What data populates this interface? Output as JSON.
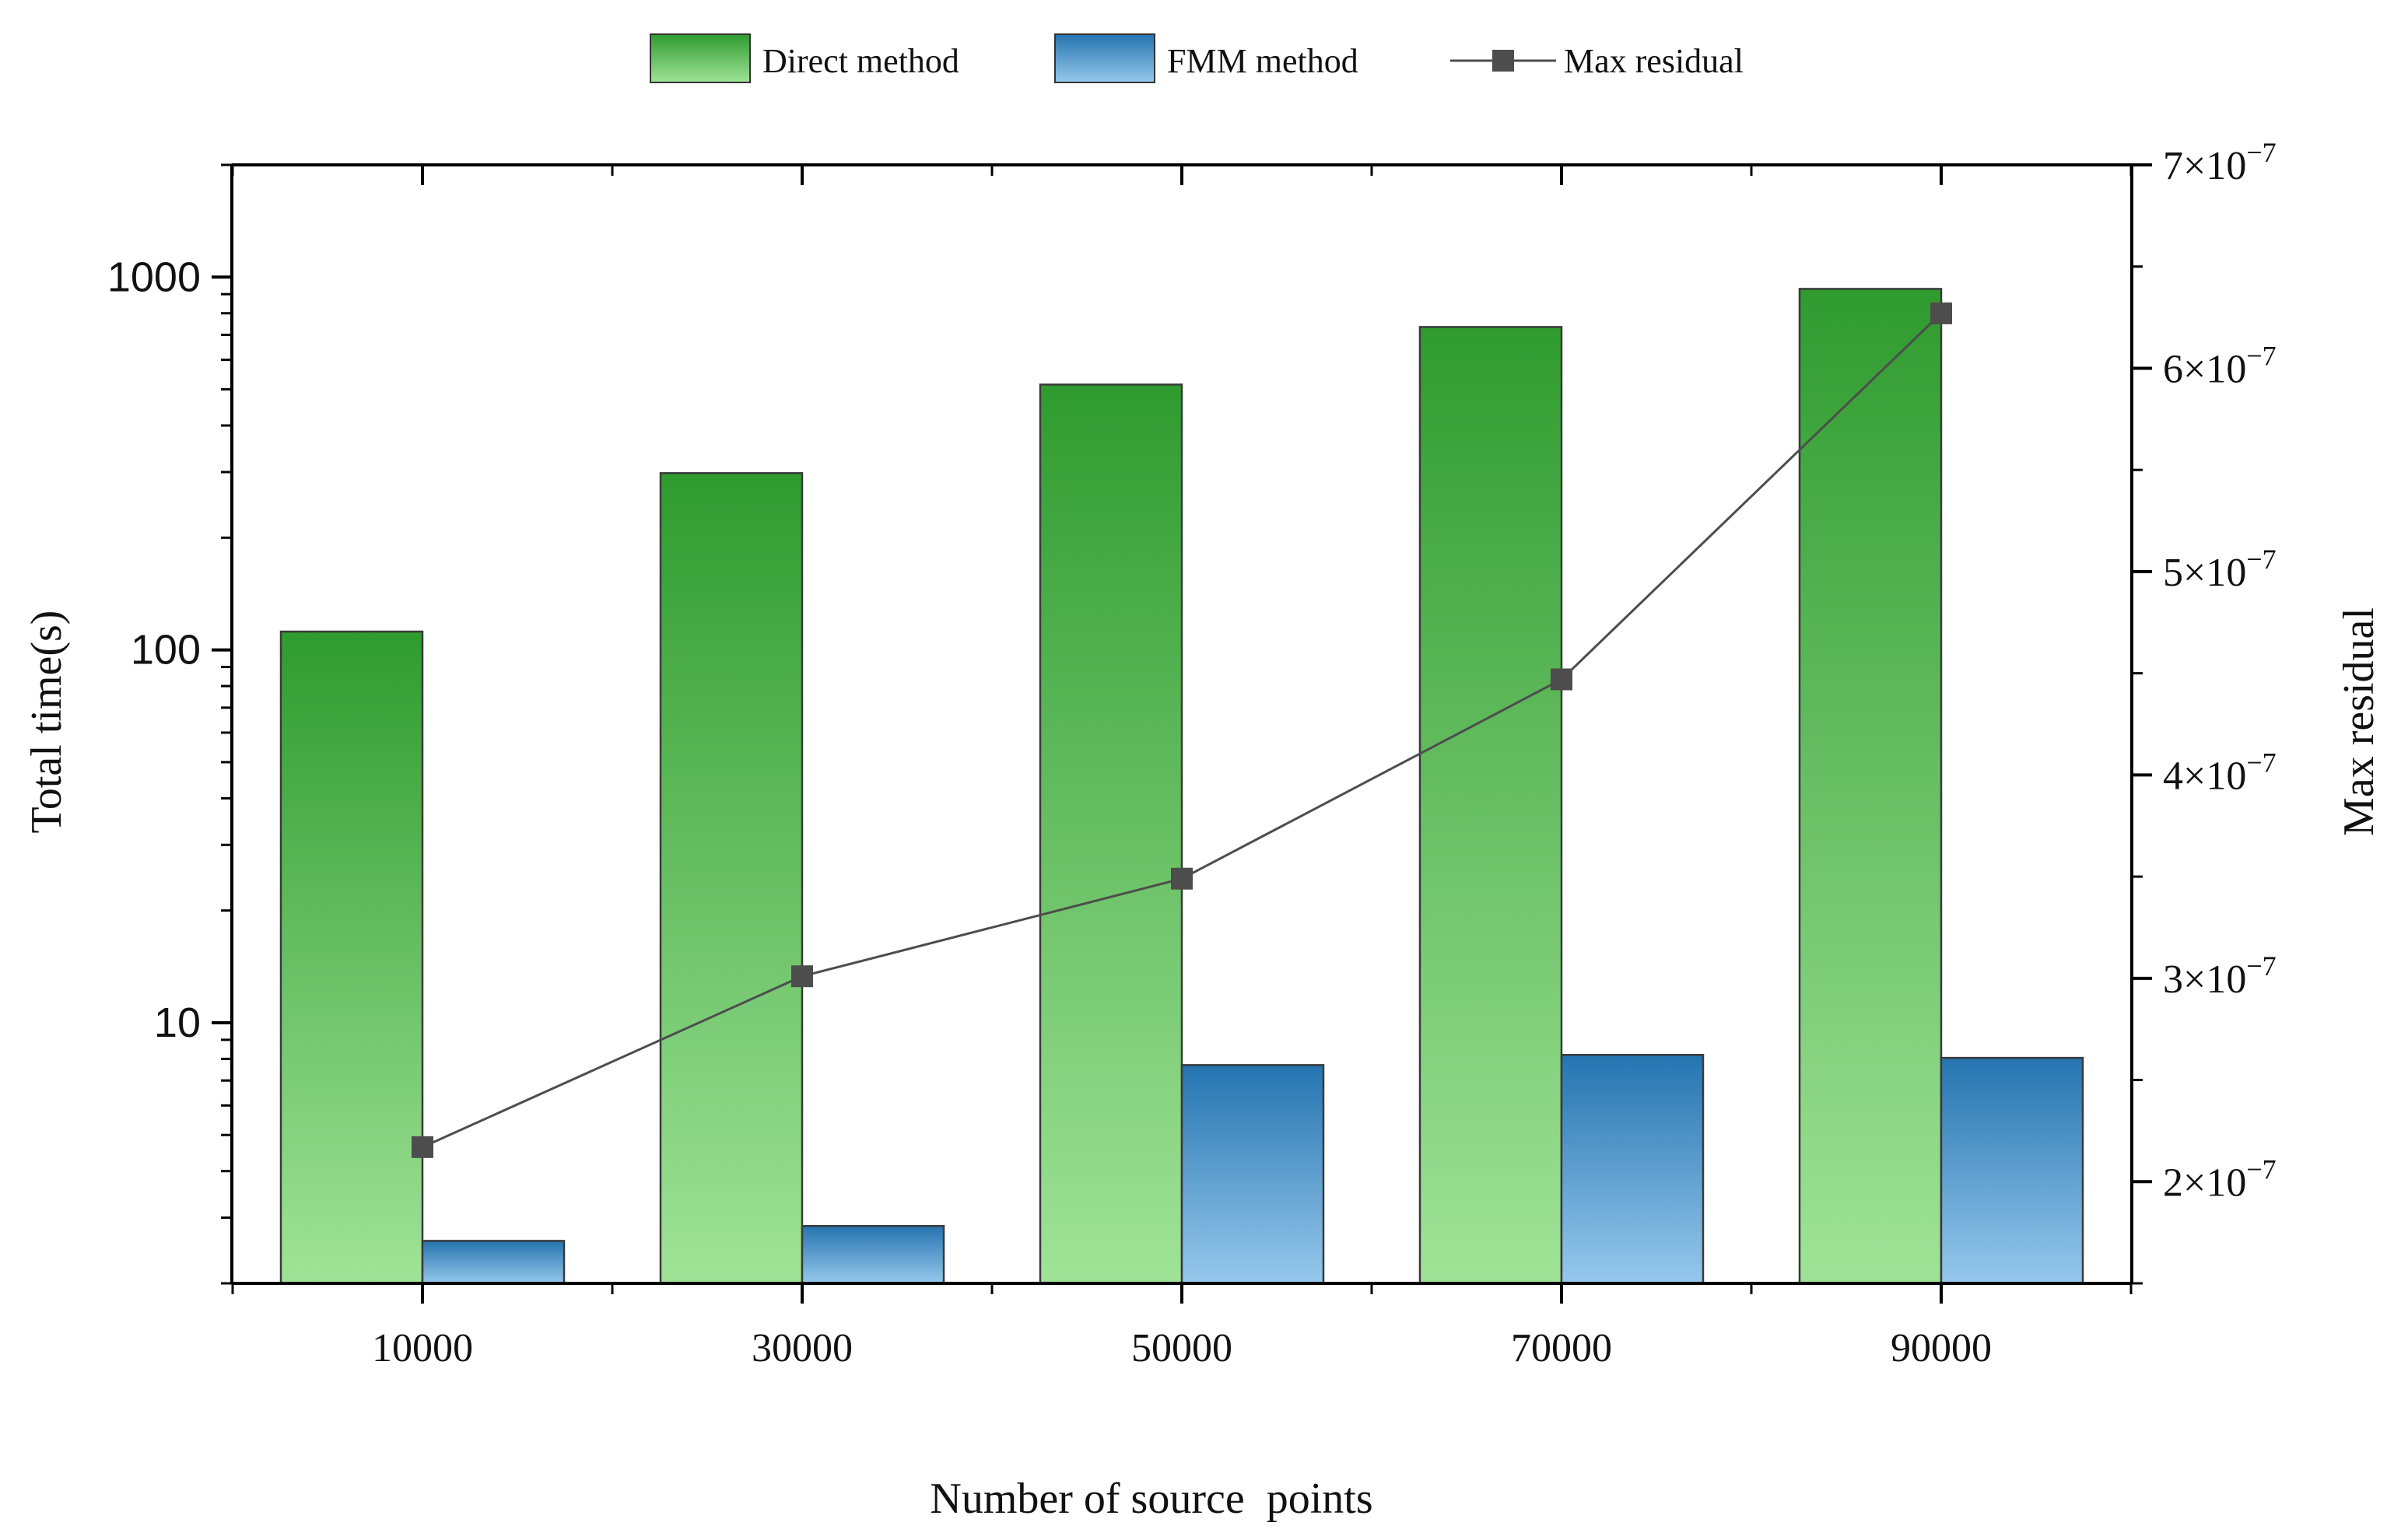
{
  "chart_data": {
    "type": "bar",
    "title": "",
    "xlabel": "Number of source  points",
    "ylabel": "Total time(s)",
    "y2label": "Max residual",
    "categories": [
      "10000",
      "30000",
      "50000",
      "70000",
      "90000"
    ],
    "yscale": "log",
    "ylim": [
      2,
      2000
    ],
    "yticks": [
      10,
      100,
      1000
    ],
    "ytick_labels": [
      "10",
      "100",
      "1000"
    ],
    "y2lim": [
      1.5e-07,
      7e-07
    ],
    "y2ticks": [
      2e-07,
      3e-07,
      4e-07,
      5e-07,
      6e-07,
      7e-07
    ],
    "y2tick_labels": [
      {
        "base": "2×10",
        "exp": "−7"
      },
      {
        "base": "3×10",
        "exp": "−7"
      },
      {
        "base": "4×10",
        "exp": "−7"
      },
      {
        "base": "5×10",
        "exp": "−7"
      },
      {
        "base": "6×10",
        "exp": "−7"
      },
      {
        "base": "7×10",
        "exp": "−7"
      }
    ],
    "series": [
      {
        "name": "Direct method",
        "type": "bar",
        "axis": "left",
        "values": [
          112,
          298,
          515,
          735,
          930
        ],
        "color_top": "#2f9b2f",
        "color_bottom": "#a0e398"
      },
      {
        "name": "FMM method",
        "type": "bar",
        "axis": "left",
        "values": [
          2.6,
          2.85,
          7.7,
          8.2,
          8.05
        ],
        "color_top": "#2574b0",
        "color_bottom": "#96c8ec"
      },
      {
        "name": "Max residual",
        "type": "line",
        "axis": "right",
        "values": [
          2.17e-07,
          3.01e-07,
          3.49e-07,
          4.47e-07,
          6.27e-07
        ],
        "color": "#4d4d4d"
      }
    ],
    "legend": {
      "position": "top-center",
      "labels": [
        "Direct method",
        "FMM method",
        "Max residual"
      ]
    }
  }
}
